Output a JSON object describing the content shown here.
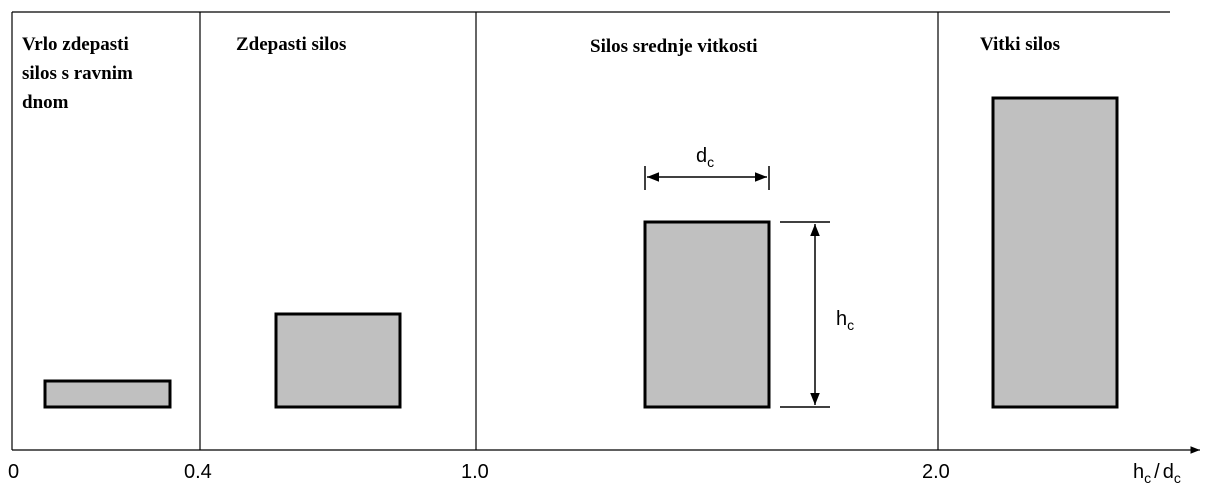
{
  "sections": [
    {
      "title_lines": [
        "Vrlo zdepasti",
        "silos s ravnim",
        "dnom"
      ]
    },
    {
      "title_lines": [
        "Zdepasti silos"
      ]
    },
    {
      "title_lines": [
        "Silos srednje vitkosti"
      ]
    },
    {
      "title_lines": [
        "Vitki silos"
      ]
    }
  ],
  "width_label": {
    "text": "d",
    "sub": "c"
  },
  "height_label": {
    "text": "h",
    "sub": "c"
  },
  "axis": {
    "ticks": [
      "0",
      "0.4",
      "1.0",
      "2.0"
    ],
    "label": {
      "numerator": {
        "text": "h",
        "sub": "c"
      },
      "separator": "/",
      "denominator": {
        "text": "d",
        "sub": "c"
      }
    }
  }
}
